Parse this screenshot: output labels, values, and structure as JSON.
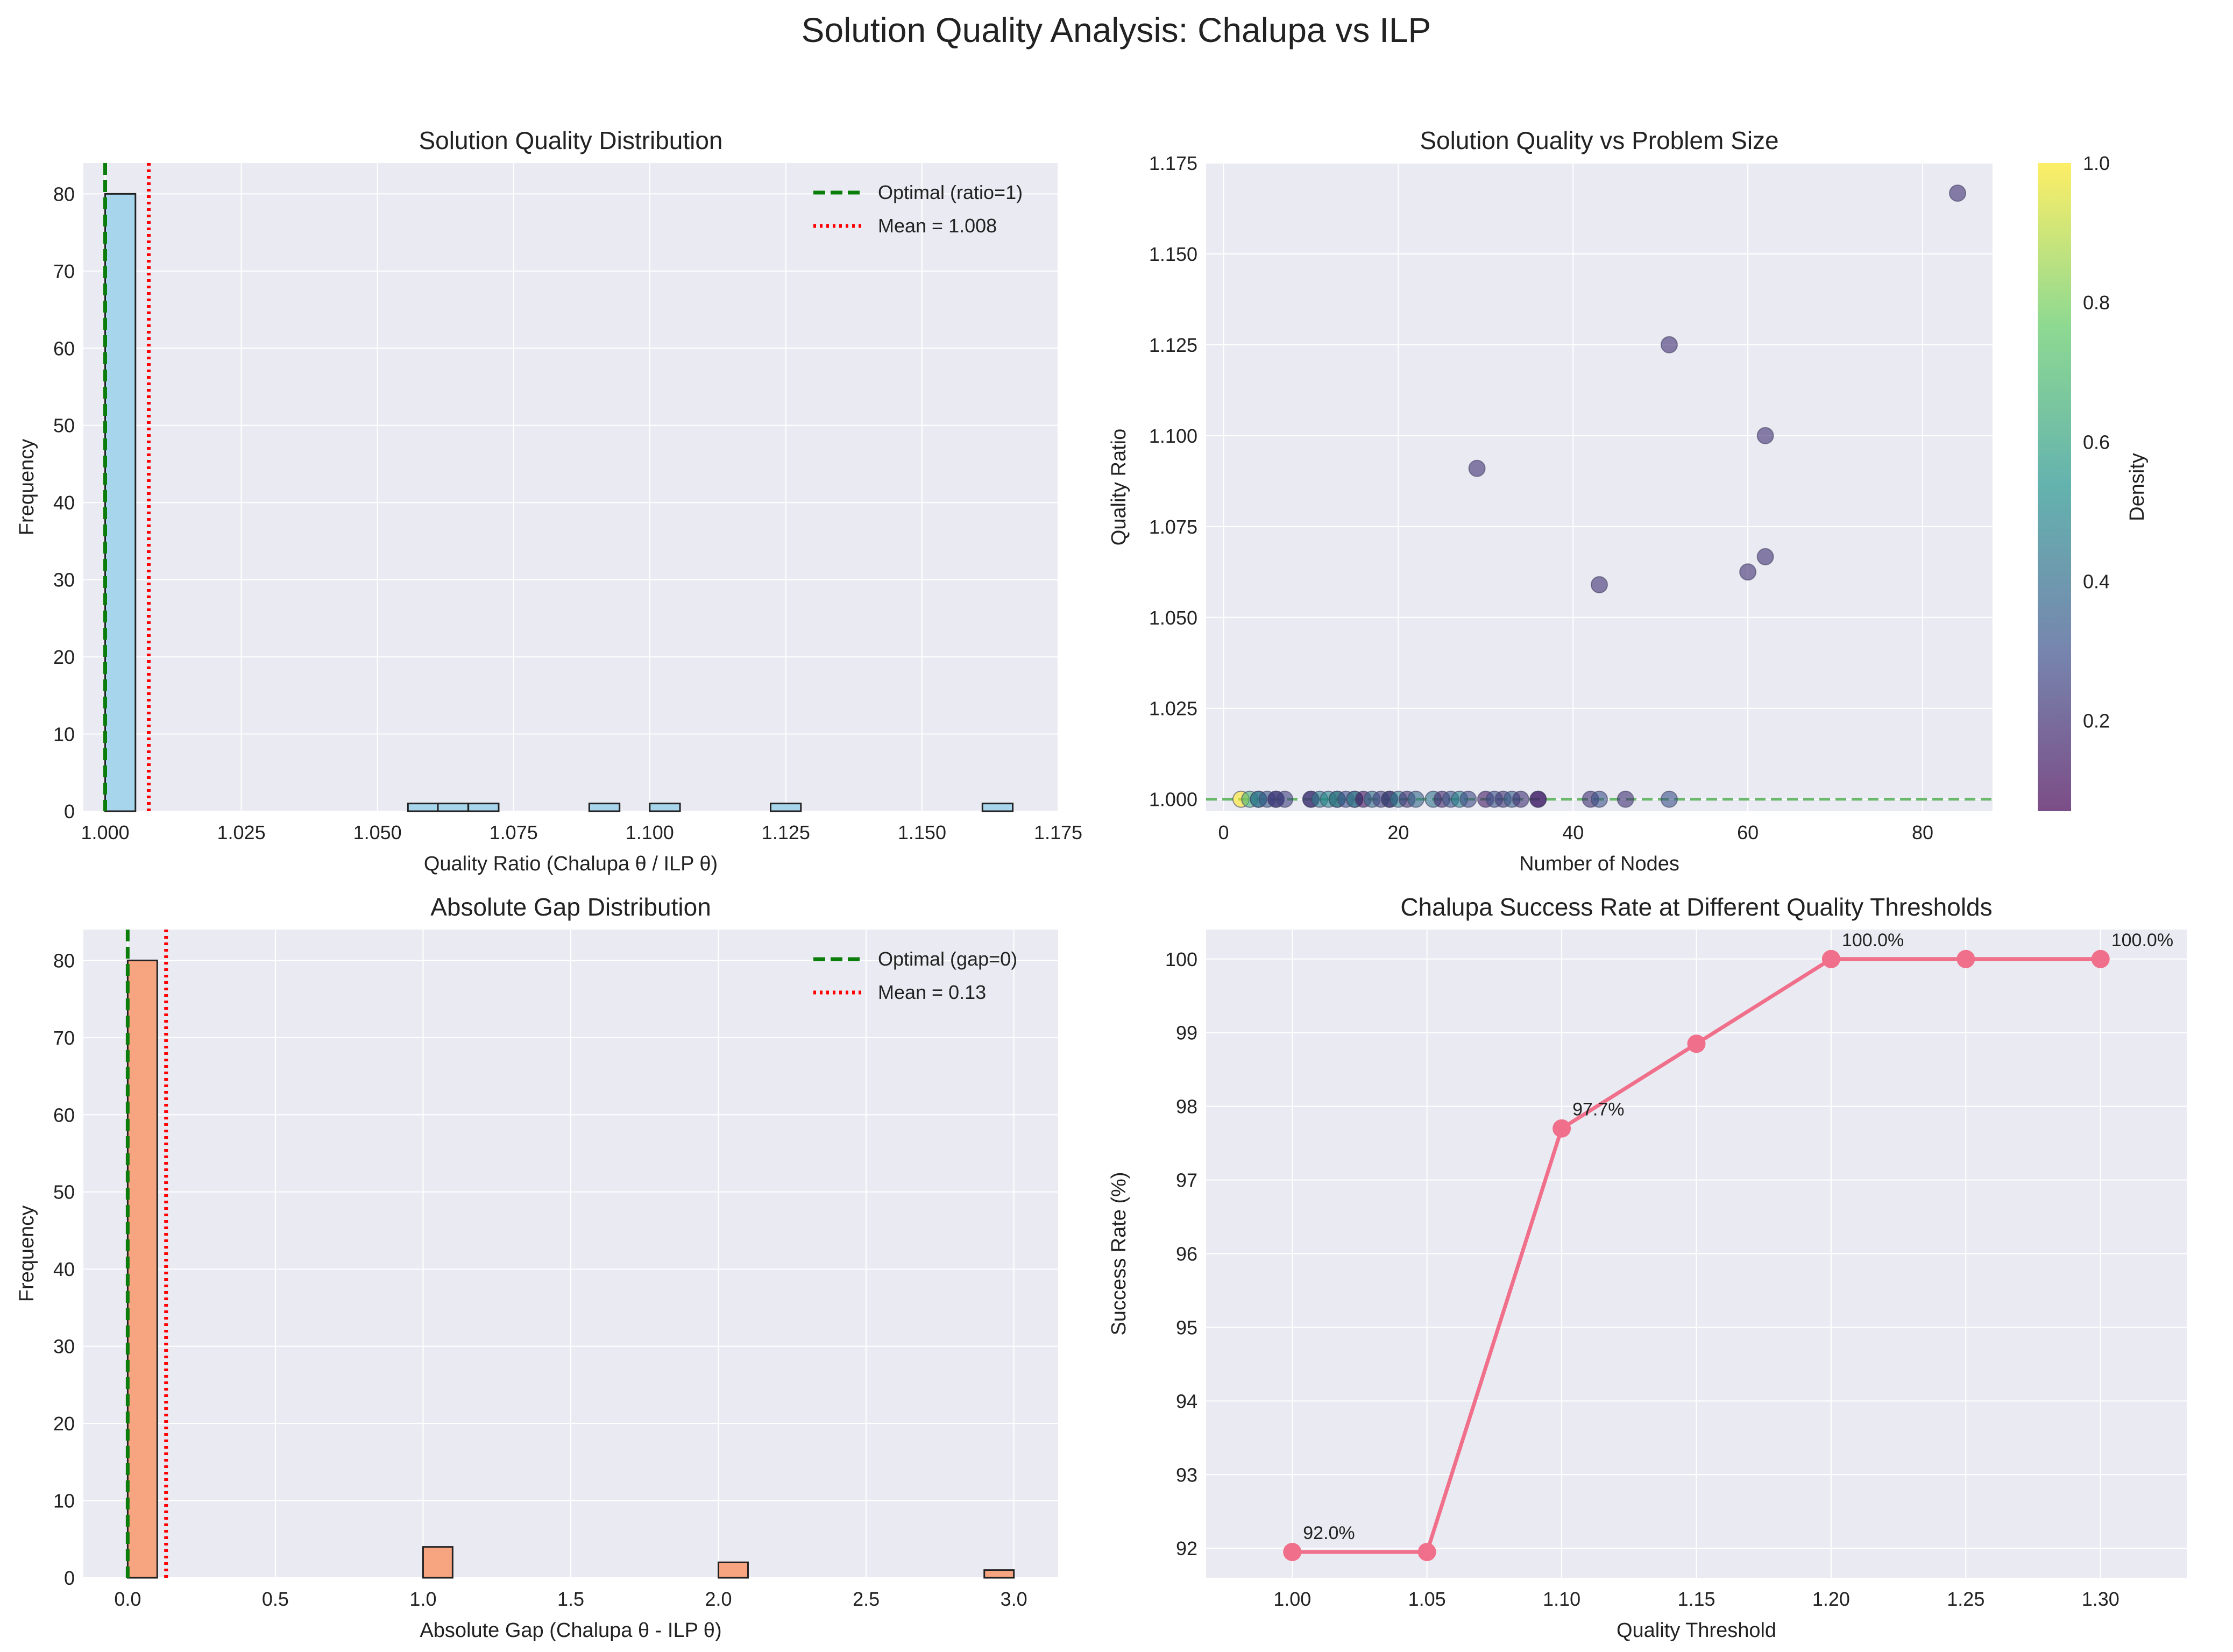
{
  "figure_title": "Solution Quality Analysis: Chalupa vs ILP",
  "chart_data": [
    {
      "type": "bar",
      "id": "quality-hist",
      "title": "Solution Quality Distribution",
      "xlabel": "Quality Ratio (Chalupa θ / ILP θ)",
      "ylabel": "Frequency",
      "xlim": [
        0.996,
        1.175
      ],
      "ylim": [
        0,
        84
      ],
      "xticks": [
        1.0,
        1.025,
        1.05,
        1.075,
        1.1,
        1.125,
        1.15,
        1.175
      ],
      "xtick_labels": [
        "1.000",
        "1.025",
        "1.050",
        "1.075",
        "1.100",
        "1.125",
        "1.150",
        "1.175"
      ],
      "yticks": [
        0,
        10,
        20,
        30,
        40,
        50,
        60,
        70,
        80
      ],
      "bin_edges_start": 1.0,
      "bin_width": 0.00556,
      "bins": [
        {
          "x0": 1.0,
          "count": 80
        },
        {
          "x0": 1.0556,
          "count": 1
        },
        {
          "x0": 1.0611,
          "count": 1
        },
        {
          "x0": 1.0667,
          "count": 1
        },
        {
          "x0": 1.0889,
          "count": 1
        },
        {
          "x0": 1.1,
          "count": 1
        },
        {
          "x0": 1.1222,
          "count": 1
        },
        {
          "x0": 1.1611,
          "count": 1
        }
      ],
      "bar_color": "#a6d5ec",
      "vlines": [
        {
          "x": 1.0,
          "label": "Optimal (ratio=1)",
          "color": "#0a7d0a",
          "style": "dashed"
        },
        {
          "x": 1.008,
          "label": "Mean = 1.008",
          "color": "#ff0000",
          "style": "dotted"
        }
      ],
      "legend": "top-right",
      "grid": true
    },
    {
      "type": "scatter",
      "id": "quality-vs-size",
      "title": "Solution Quality vs Problem Size",
      "xlabel": "Number of Nodes",
      "ylabel": "Quality Ratio",
      "xlim": [
        -2,
        88
      ],
      "ylim": [
        0.9967,
        1.175
      ],
      "xticks": [
        0,
        20,
        40,
        60,
        80
      ],
      "yticks": [
        1.0,
        1.025,
        1.05,
        1.075,
        1.1,
        1.125,
        1.15,
        1.175
      ],
      "ytick_labels": [
        "1.000",
        "1.025",
        "1.050",
        "1.075",
        "1.100",
        "1.125",
        "1.150",
        "1.175"
      ],
      "colorbar_label": "Density",
      "colorbar_range": [
        0.07,
        1.0
      ],
      "colorbar_ticks": [
        0.2,
        0.4,
        0.6,
        0.8,
        1.0
      ],
      "colorbar_tick_labels": [
        "0.2",
        "0.4",
        "0.6",
        "0.8",
        "1.0"
      ],
      "colormap": "viridis",
      "hline": {
        "y": 1.0,
        "color": "#2ca02c",
        "style": "dashed"
      },
      "points": [
        {
          "x": 2,
          "y": 1.0,
          "c": 1.0
        },
        {
          "x": 3,
          "y": 1.0,
          "c": 0.67
        },
        {
          "x": 4,
          "y": 1.0,
          "c": 0.5
        },
        {
          "x": 4,
          "y": 1.0,
          "c": 0.4
        },
        {
          "x": 5,
          "y": 1.0,
          "c": 0.33
        },
        {
          "x": 6,
          "y": 1.0,
          "c": 0.1
        },
        {
          "x": 6,
          "y": 1.0,
          "c": 0.28
        },
        {
          "x": 7,
          "y": 1.0,
          "c": 0.25
        },
        {
          "x": 10,
          "y": 1.0,
          "c": 0.2
        },
        {
          "x": 10,
          "y": 1.0,
          "c": 0.22
        },
        {
          "x": 11,
          "y": 1.0,
          "c": 0.45
        },
        {
          "x": 12,
          "y": 1.0,
          "c": 0.5
        },
        {
          "x": 13,
          "y": 1.0,
          "c": 0.15
        },
        {
          "x": 13,
          "y": 1.0,
          "c": 0.55
        },
        {
          "x": 14,
          "y": 1.0,
          "c": 0.3
        },
        {
          "x": 15,
          "y": 1.0,
          "c": 0.6
        },
        {
          "x": 15,
          "y": 1.0,
          "c": 0.35
        },
        {
          "x": 16,
          "y": 1.0,
          "c": 0.12
        },
        {
          "x": 17,
          "y": 1.0,
          "c": 0.4
        },
        {
          "x": 18,
          "y": 1.0,
          "c": 0.25
        },
        {
          "x": 19,
          "y": 1.0,
          "c": 0.5
        },
        {
          "x": 19,
          "y": 1.0,
          "c": 0.15
        },
        {
          "x": 20,
          "y": 1.0,
          "c": 0.45
        },
        {
          "x": 21,
          "y": 1.0,
          "c": 0.2
        },
        {
          "x": 22,
          "y": 1.0,
          "c": 0.38
        },
        {
          "x": 24,
          "y": 1.0,
          "c": 0.42
        },
        {
          "x": 25,
          "y": 1.0,
          "c": 0.18
        },
        {
          "x": 26,
          "y": 1.0,
          "c": 0.33
        },
        {
          "x": 27,
          "y": 1.0,
          "c": 0.48
        },
        {
          "x": 28,
          "y": 1.0,
          "c": 0.27
        },
        {
          "x": 30,
          "y": 1.0,
          "c": 0.14
        },
        {
          "x": 31,
          "y": 1.0,
          "c": 0.3
        },
        {
          "x": 32,
          "y": 1.0,
          "c": 0.22
        },
        {
          "x": 33,
          "y": 1.0,
          "c": 0.35
        },
        {
          "x": 34,
          "y": 1.0,
          "c": 0.2
        },
        {
          "x": 36,
          "y": 1.0,
          "c": 0.25
        },
        {
          "x": 36,
          "y": 1.0,
          "c": 0.12
        },
        {
          "x": 42,
          "y": 1.0,
          "c": 0.2
        },
        {
          "x": 43,
          "y": 1.0,
          "c": 0.3
        },
        {
          "x": 46,
          "y": 1.0,
          "c": 0.2
        },
        {
          "x": 51,
          "y": 1.0,
          "c": 0.3
        },
        {
          "x": 29,
          "y": 1.091,
          "c": 0.2
        },
        {
          "x": 43,
          "y": 1.059,
          "c": 0.2
        },
        {
          "x": 51,
          "y": 1.125,
          "c": 0.2
        },
        {
          "x": 60,
          "y": 1.0625,
          "c": 0.2
        },
        {
          "x": 62,
          "y": 1.1,
          "c": 0.2
        },
        {
          "x": 62,
          "y": 1.0667,
          "c": 0.2
        },
        {
          "x": 84,
          "y": 1.1667,
          "c": 0.2
        }
      ],
      "grid": true
    },
    {
      "type": "bar",
      "id": "gap-hist",
      "title": "Absolute Gap Distribution",
      "xlabel": "Absolute Gap (Chalupa θ - ILP θ)",
      "ylabel": "Frequency",
      "xlim": [
        -0.15,
        3.15
      ],
      "ylim": [
        0,
        84
      ],
      "xticks": [
        0.0,
        0.5,
        1.0,
        1.5,
        2.0,
        2.5,
        3.0
      ],
      "xtick_labels": [
        "0.0",
        "0.5",
        "1.0",
        "1.5",
        "2.0",
        "2.5",
        "3.0"
      ],
      "yticks": [
        0,
        10,
        20,
        30,
        40,
        50,
        60,
        70,
        80
      ],
      "bin_width": 0.1,
      "bins": [
        {
          "x0": 0.0,
          "count": 80
        },
        {
          "x0": 1.0,
          "count": 4
        },
        {
          "x0": 2.0,
          "count": 2
        },
        {
          "x0": 2.9,
          "count": 1
        }
      ],
      "bar_color": "#f7a580",
      "vlines": [
        {
          "x": 0.0,
          "label": "Optimal (gap=0)",
          "color": "#0a7d0a",
          "style": "dashed"
        },
        {
          "x": 0.13,
          "label": "Mean = 0.13",
          "color": "#ff0000",
          "style": "dotted"
        }
      ],
      "legend": "top-right",
      "grid": true
    },
    {
      "type": "line",
      "id": "success-rate",
      "title": "Chalupa Success Rate at Different Quality Thresholds",
      "xlabel": "Quality Threshold",
      "ylabel": "Success Rate (%)",
      "xlim": [
        0.968,
        1.332
      ],
      "ylim": [
        91.6,
        100.4
      ],
      "xticks": [
        1.0,
        1.05,
        1.1,
        1.15,
        1.2,
        1.25,
        1.3
      ],
      "xtick_labels": [
        "1.00",
        "1.05",
        "1.10",
        "1.15",
        "1.20",
        "1.25",
        "1.30"
      ],
      "yticks": [
        92,
        93,
        94,
        95,
        96,
        97,
        98,
        99,
        100
      ],
      "x": [
        1.0,
        1.05,
        1.1,
        1.15,
        1.2,
        1.25,
        1.3
      ],
      "y": [
        91.95,
        91.95,
        97.7,
        98.85,
        100.0,
        100.0,
        100.0
      ],
      "color": "#f06f8a",
      "annotations": [
        {
          "x": 1.0,
          "y": 91.95,
          "text": "92.0%"
        },
        {
          "x": 1.1,
          "y": 97.7,
          "text": "97.7%"
        },
        {
          "x": 1.2,
          "y": 100.0,
          "text": "100.0%"
        },
        {
          "x": 1.3,
          "y": 100.0,
          "text": "100.0%"
        }
      ],
      "grid": true
    }
  ]
}
